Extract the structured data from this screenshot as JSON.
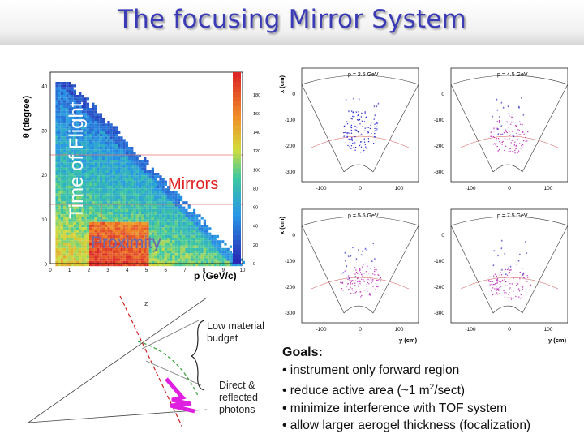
{
  "title": "The focusing Mirror System",
  "heatmap": {
    "ylabel": "θ (degree)",
    "xlabel": "p (GeV/c)",
    "y_ticks": [
      "0",
      "10",
      "20",
      "30",
      "40"
    ],
    "x_ticks": [
      "0",
      "1",
      "2",
      "3",
      "4",
      "5",
      "6",
      "7",
      "8",
      "9",
      "10"
    ],
    "colorbar_ticks": [
      "0",
      "20",
      "40",
      "60",
      "80",
      "100",
      "120",
      "140",
      "160",
      "180"
    ],
    "region_labels": {
      "time_of_flight": "Time of Flight",
      "mirrors": "Mirrors",
      "proximity": "Proximity"
    }
  },
  "panels": {
    "x_axis_label": "x (cm)",
    "y_axis_label": "y (cm)",
    "x_ticks": [
      "0",
      "-100",
      "-200",
      "-300"
    ],
    "y_ticks": [
      "-100",
      "0",
      "100"
    ],
    "items": [
      {
        "label": "p = 2.5 GeV",
        "color": "#2a2ad0"
      },
      {
        "label": "p = 4.5 GeV",
        "color": "#c03cc0"
      },
      {
        "label": "p = 5.5 GeV",
        "color": "#c03cc0"
      },
      {
        "label": "p = 7.5 GeV",
        "color": "#c03cc0"
      }
    ]
  },
  "sketch": {
    "label_budget": "Low material budget",
    "label_photons": "Direct & reflected photons",
    "axis_letter": "z"
  },
  "goals": {
    "heading": "Goals:",
    "items": [
      "• instrument only forward region",
      "• reduce active area  (~1 m",
      "/sect)",
      "• minimize interference with TOF system",
      "• allow larger aerogel thickness (focalization)"
    ],
    "superscript": "2"
  }
}
